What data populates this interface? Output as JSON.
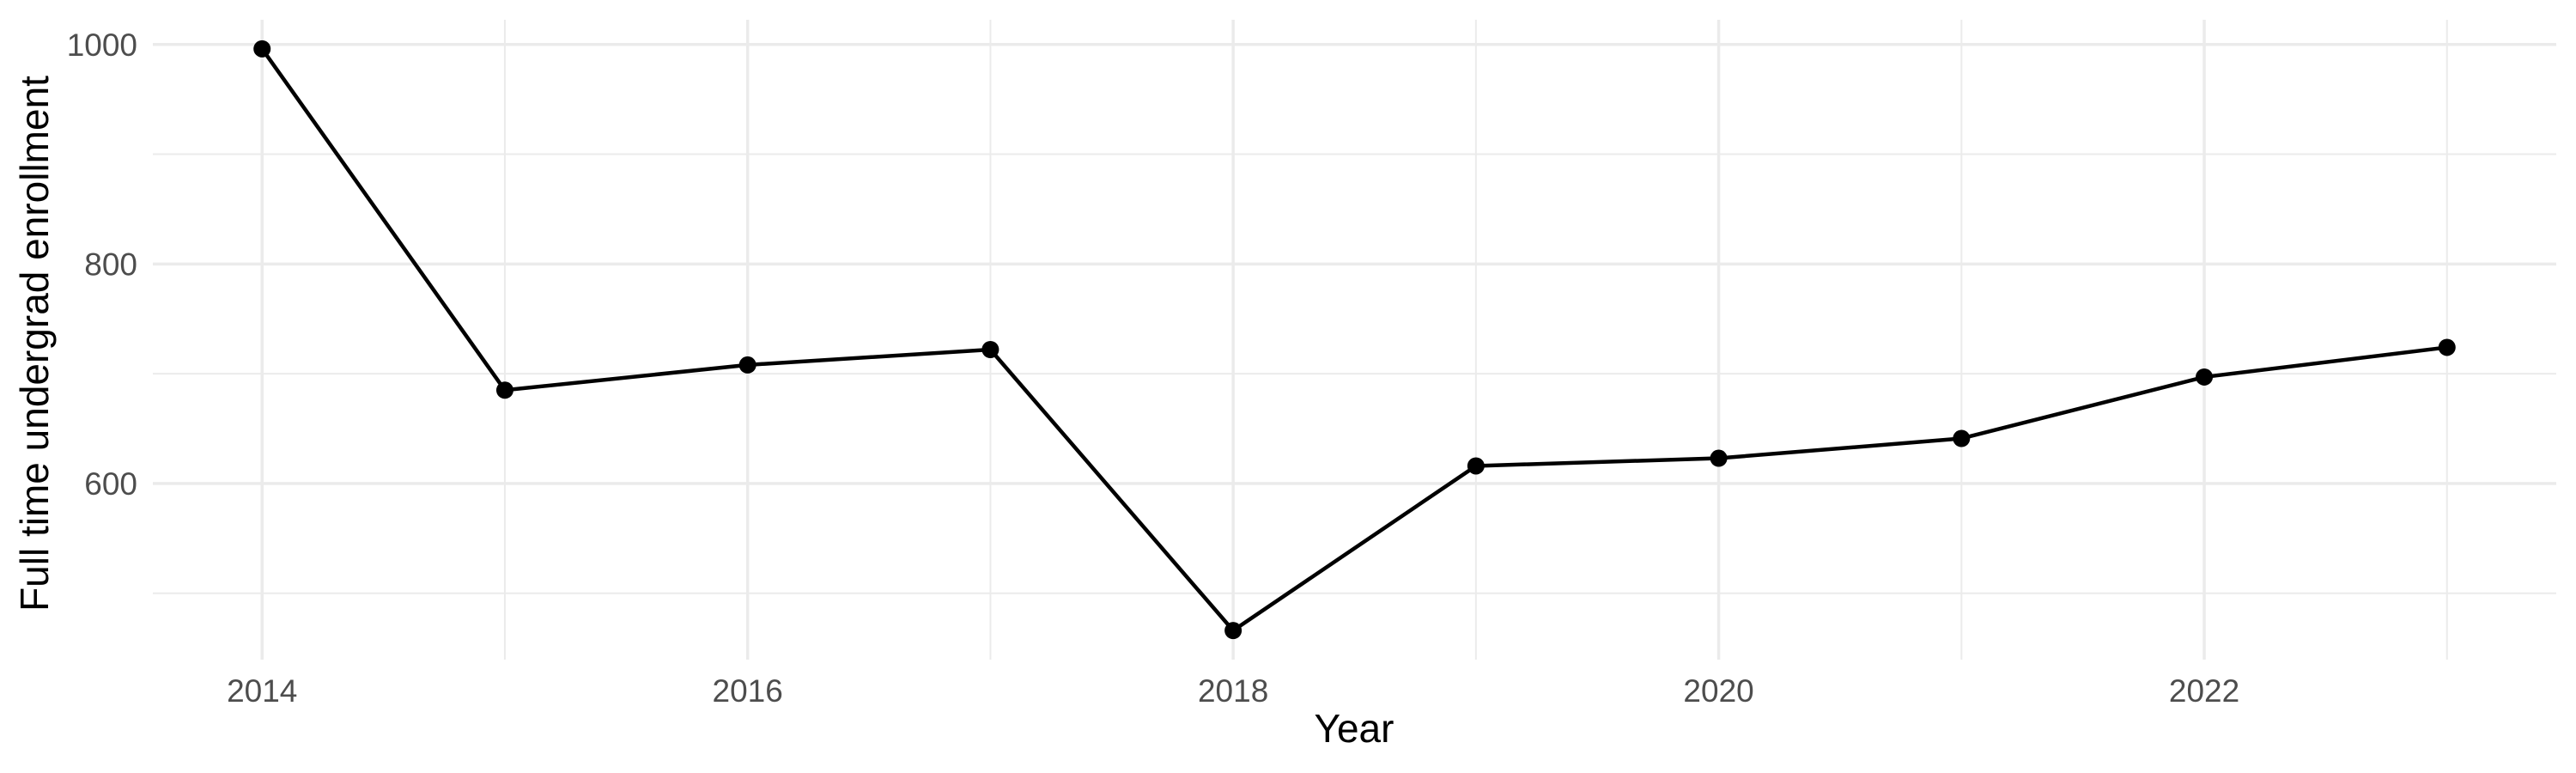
{
  "chart_data": {
    "type": "line",
    "title": "",
    "xlabel": "Year",
    "ylabel": "Full time undergrad enrollment",
    "x": [
      2014,
      2015,
      2016,
      2017,
      2018,
      2019,
      2020,
      2021,
      2022,
      2023
    ],
    "values": [
      996,
      685,
      708,
      722,
      466,
      616,
      623,
      641,
      697,
      724
    ],
    "x_major_ticks": [
      2014,
      2016,
      2018,
      2020,
      2022
    ],
    "x_tick_labels": [
      "2014",
      "2016",
      "2018",
      "2020",
      "2022"
    ],
    "x_minor_gridlines": [
      2015,
      2017,
      2019,
      2021,
      2023
    ],
    "y_major_ticks": [
      600,
      800,
      1000
    ],
    "y_tick_labels": [
      "600",
      "800",
      "1000"
    ],
    "y_minor_gridlines": [
      500,
      700,
      900
    ],
    "xlim": [
      2013.55,
      2023.45
    ],
    "ylim": [
      439.5,
      1022.5
    ],
    "grid": true,
    "legend": false,
    "marker": "filled-circle",
    "colors": {
      "line": "#000000",
      "point": "#000000",
      "gridline": "#EBEBEB",
      "tick_label": "#4D4D4D",
      "axis_title": "#000000",
      "background": "#FFFFFF"
    }
  }
}
